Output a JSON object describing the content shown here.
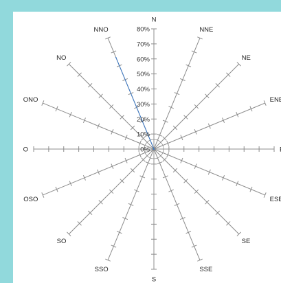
{
  "chart_data": {
    "type": "radar",
    "title": "",
    "series": [
      {
        "name": "",
        "values": [
          0,
          66,
          0,
          0,
          0,
          0,
          0,
          0,
          0,
          0,
          0,
          0,
          0,
          0,
          0,
          0
        ],
        "color": "#3b78c4"
      }
    ],
    "categories": [
      "N",
      "NNO",
      "NO",
      "ONO",
      "O",
      "OSO",
      "SO",
      "SSO",
      "S",
      "SSE",
      "SE",
      "ESE",
      "E",
      "ENE",
      "NE",
      "NNE"
    ],
    "radial_axis": {
      "min": 0,
      "max": 80,
      "step": 10,
      "tick_labels": [
        "0%",
        "10%",
        "20%",
        "30%",
        "40%",
        "50%",
        "60%",
        "70%",
        "80%"
      ]
    },
    "grid": false
  },
  "colors": {
    "background": "#91d9dc",
    "panel": "#ffffff",
    "axis": "#8c8c8c",
    "series": "#3b78c4"
  }
}
